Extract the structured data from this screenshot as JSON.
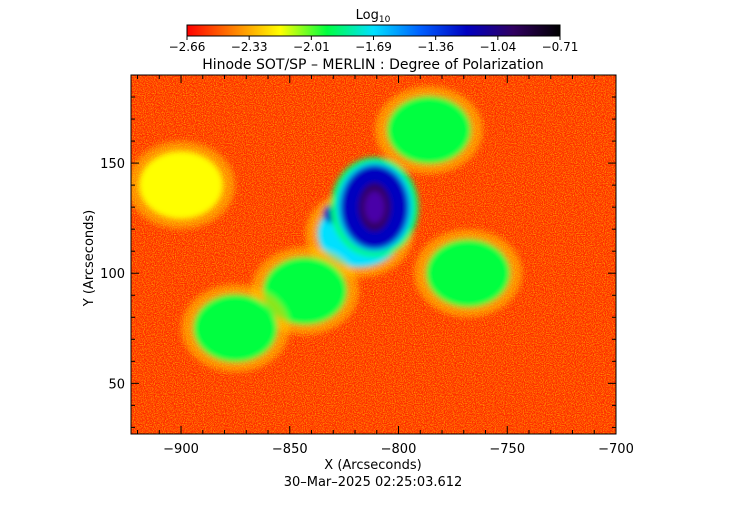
{
  "chart_data": {
    "type": "heatmap",
    "title": "Hinode SOT/SP – MERLIN : Degree of Polarization",
    "xlabel": "X (Arcseconds)",
    "ylabel": "Y (Arcseconds)",
    "xlim": [
      -923,
      -700
    ],
    "ylim": [
      27,
      190
    ],
    "xticks": [
      -900,
      -850,
      -800,
      -750,
      -700
    ],
    "yticks": [
      50,
      100,
      150
    ],
    "xtick_labels": [
      "−900",
      "−850",
      "−800",
      "−750",
      "−700"
    ],
    "ytick_labels": [
      "50",
      "100",
      "150"
    ],
    "timestamp": "30–Mar–2025 02:25:03.612",
    "colorbar": {
      "label_base": "Log",
      "label_sub": "10",
      "range": [
        -2.66,
        -0.71
      ],
      "tick_labels": [
        "−2.66",
        "−2.33",
        "−2.01",
        "−1.69",
        "−1.36",
        "−1.04",
        "−0.71"
      ],
      "colormap": [
        "#ff0000",
        "#ff8000",
        "#ffff00",
        "#00ff40",
        "#00e0ff",
        "#0060ff",
        "#0000c0",
        "#300060",
        "#000000"
      ]
    },
    "features": [
      {
        "kind": "sunspot-umbra",
        "x": -811,
        "y": 130,
        "value": -0.85
      },
      {
        "kind": "sunspot-penumbra",
        "x": -811,
        "y": 130,
        "value": -1.25
      },
      {
        "kind": "pore",
        "x": -831,
        "y": 127,
        "value": -1.3
      },
      {
        "kind": "plage",
        "x": -818,
        "y": 118,
        "value": -1.8
      },
      {
        "kind": "plage",
        "x": -843,
        "y": 92,
        "value": -1.9
      },
      {
        "kind": "plage",
        "x": -875,
        "y": 75,
        "value": -2.0
      },
      {
        "kind": "plage",
        "x": -900,
        "y": 140,
        "value": -2.1
      },
      {
        "kind": "plage",
        "x": -768,
        "y": 100,
        "value": -1.9
      },
      {
        "kind": "plage",
        "x": -786,
        "y": 165,
        "value": -2.0
      },
      {
        "kind": "quiet-sun",
        "x": -740,
        "y": 130,
        "value": -2.5
      }
    ]
  }
}
